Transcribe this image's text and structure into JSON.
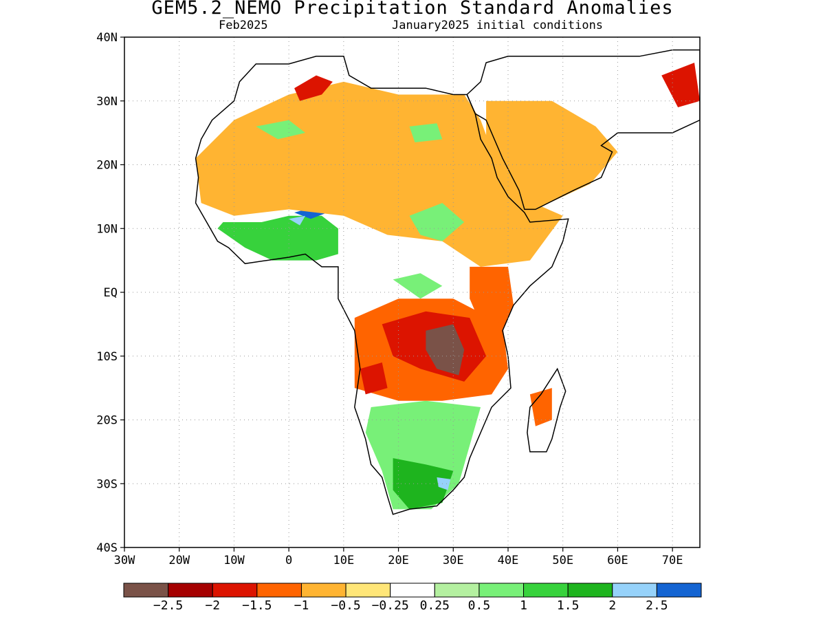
{
  "title": "GEM5.2_NEMO Precipitation Standard Anomalies",
  "subtitle_left": "Feb2025",
  "subtitle_right": "January2025 initial conditions",
  "map": {
    "lon_range": [
      -30,
      75
    ],
    "lat_range": [
      -40,
      40
    ],
    "lat_ticks": [
      {
        "value": 40,
        "label": "40N"
      },
      {
        "value": 30,
        "label": "30N"
      },
      {
        "value": 20,
        "label": "20N"
      },
      {
        "value": 10,
        "label": "10N"
      },
      {
        "value": 0,
        "label": "EQ"
      },
      {
        "value": -10,
        "label": "10S"
      },
      {
        "value": -20,
        "label": "20S"
      },
      {
        "value": -30,
        "label": "30S"
      },
      {
        "value": -40,
        "label": "40S"
      }
    ],
    "lon_ticks": [
      {
        "value": -30,
        "label": "30W"
      },
      {
        "value": -20,
        "label": "20W"
      },
      {
        "value": -10,
        "label": "10W"
      },
      {
        "value": 0,
        "label": "0"
      },
      {
        "value": 10,
        "label": "10E"
      },
      {
        "value": 20,
        "label": "20E"
      },
      {
        "value": 30,
        "label": "30E"
      },
      {
        "value": 40,
        "label": "40E"
      },
      {
        "value": 50,
        "label": "50E"
      },
      {
        "value": 60,
        "label": "60E"
      },
      {
        "value": 70,
        "label": "70E"
      }
    ],
    "grid": true
  },
  "colorbar": {
    "colors": [
      "#7a5248",
      "#a50000",
      "#dc1400",
      "#ff6400",
      "#ffb432",
      "#ffe678",
      "#ffffff",
      "#b4f0a0",
      "#78f078",
      "#37d23c",
      "#1eb41e",
      "#96d2fa",
      "#1464d2"
    ],
    "labels": [
      "−2.5",
      "−2",
      "−1.5",
      "−1",
      "−0.5",
      "−0.25",
      "0.25",
      "0.5",
      "1",
      "1.5",
      "2",
      "2.5"
    ]
  },
  "anomaly_regions": [
    {
      "name": "west-africa-wet",
      "color": "#37d23c",
      "lonlat": [
        [
          -13,
          10
        ],
        [
          -8,
          7
        ],
        [
          -3,
          5
        ],
        [
          5,
          5
        ],
        [
          9,
          6
        ],
        [
          9,
          10
        ],
        [
          6,
          12
        ],
        [
          0,
          12
        ],
        [
          -5,
          11
        ],
        [
          -12,
          11
        ]
      ]
    },
    {
      "name": "nigeria-very-wet",
      "color": "#1464d2",
      "lonlat": [
        [
          1,
          12.5
        ],
        [
          5,
          13.5
        ],
        [
          7,
          12.5
        ],
        [
          4,
          11.5
        ]
      ]
    },
    {
      "name": "nigeria-wet-blue",
      "color": "#96d2fa",
      "lonlat": [
        [
          0,
          11.5
        ],
        [
          3,
          12
        ],
        [
          2,
          10.5
        ]
      ]
    },
    {
      "name": "sahara-dry",
      "color": "#ffb432",
      "lonlat": [
        [
          -17,
          21
        ],
        [
          -10,
          27
        ],
        [
          0,
          31
        ],
        [
          10,
          33
        ],
        [
          20,
          31
        ],
        [
          32,
          31
        ],
        [
          35,
          27
        ],
        [
          38,
          20
        ],
        [
          42,
          15
        ],
        [
          50,
          12
        ],
        [
          44,
          5
        ],
        [
          35,
          4
        ],
        [
          28,
          8
        ],
        [
          18,
          9
        ],
        [
          10,
          12
        ],
        [
          0,
          13
        ],
        [
          -10,
          12
        ],
        [
          -16,
          14
        ]
      ]
    },
    {
      "name": "algeria-strong-dry",
      "color": "#dc1400",
      "lonlat": [
        [
          1,
          32
        ],
        [
          5,
          34
        ],
        [
          8,
          33
        ],
        [
          6,
          31
        ],
        [
          2,
          30
        ]
      ]
    },
    {
      "name": "central-sahara-wet",
      "color": "#78f078",
      "lonlat": [
        [
          -6,
          26
        ],
        [
          0,
          27
        ],
        [
          3,
          25
        ],
        [
          -2,
          24
        ]
      ]
    },
    {
      "name": "egypt-wet",
      "color": "#78f078",
      "lonlat": [
        [
          22,
          26
        ],
        [
          27,
          26.5
        ],
        [
          28,
          24
        ],
        [
          23,
          23.5
        ]
      ]
    },
    {
      "name": "sudan-wet",
      "color": "#78f078",
      "lonlat": [
        [
          22,
          12
        ],
        [
          28,
          14
        ],
        [
          32,
          11
        ],
        [
          28,
          8
        ],
        [
          24,
          9
        ]
      ]
    },
    {
      "name": "arabia-dry",
      "color": "#ffb432",
      "lonlat": [
        [
          36,
          30
        ],
        [
          48,
          30
        ],
        [
          56,
          26
        ],
        [
          60,
          22
        ],
        [
          55,
          17
        ],
        [
          45,
          13
        ],
        [
          40,
          16
        ],
        [
          36,
          24
        ]
      ]
    },
    {
      "name": "middle-east-strong-dry",
      "color": "#dc1400",
      "lonlat": [
        [
          68,
          34
        ],
        [
          74,
          36
        ],
        [
          75,
          30
        ],
        [
          71,
          29
        ]
      ]
    },
    {
      "name": "east-africa-dry",
      "color": "#ff6400",
      "lonlat": [
        [
          33,
          4
        ],
        [
          40,
          4
        ],
        [
          41,
          -2
        ],
        [
          39,
          -6
        ],
        [
          35,
          -5
        ],
        [
          33,
          -1
        ]
      ]
    },
    {
      "name": "central-africa-dry",
      "color": "#ff6400",
      "lonlat": [
        [
          12,
          -4
        ],
        [
          20,
          -1
        ],
        [
          30,
          -1
        ],
        [
          39,
          -5
        ],
        [
          40,
          -12
        ],
        [
          37,
          -16
        ],
        [
          28,
          -17
        ],
        [
          20,
          -17
        ],
        [
          12,
          -15
        ],
        [
          12,
          -9
        ]
      ]
    },
    {
      "name": "central-africa-strong-dry",
      "color": "#dc1400",
      "lonlat": [
        [
          17,
          -5
        ],
        [
          25,
          -3
        ],
        [
          33,
          -4
        ],
        [
          36,
          -10
        ],
        [
          32,
          -14
        ],
        [
          24,
          -12
        ],
        [
          19,
          -10
        ]
      ]
    },
    {
      "name": "angola-strong-dry",
      "color": "#dc1400",
      "lonlat": [
        [
          13,
          -12
        ],
        [
          17,
          -11
        ],
        [
          18,
          -15
        ],
        [
          14,
          -16
        ]
      ]
    },
    {
      "name": "zambia-extreme-dry",
      "color": "#7a5248",
      "lonlat": [
        [
          25,
          -6
        ],
        [
          30,
          -5
        ],
        [
          32,
          -9
        ],
        [
          31,
          -13
        ],
        [
          27,
          -12
        ],
        [
          25,
          -9
        ]
      ]
    },
    {
      "name": "southern-africa-wet",
      "color": "#78f078",
      "lonlat": [
        [
          15,
          -18
        ],
        [
          25,
          -17
        ],
        [
          35,
          -18
        ],
        [
          33,
          -24
        ],
        [
          31,
          -30
        ],
        [
          26,
          -34
        ],
        [
          19,
          -34
        ],
        [
          17,
          -28
        ],
        [
          14,
          -22
        ]
      ]
    },
    {
      "name": "south-africa-very-wet",
      "color": "#1eb41e",
      "lonlat": [
        [
          19,
          -26
        ],
        [
          25,
          -27
        ],
        [
          30,
          -28
        ],
        [
          28,
          -33
        ],
        [
          22,
          -34
        ],
        [
          19,
          -31
        ]
      ]
    },
    {
      "name": "lesotho-wet-blue",
      "color": "#96d2fa",
      "lonlat": [
        [
          27,
          -29
        ],
        [
          29.5,
          -29.3
        ],
        [
          29,
          -31
        ],
        [
          27.3,
          -30.5
        ]
      ]
    },
    {
      "name": "madagascar-dry",
      "color": "#ff6400",
      "lonlat": [
        [
          44,
          -16
        ],
        [
          48,
          -15
        ],
        [
          48,
          -20
        ],
        [
          45,
          -21
        ]
      ]
    },
    {
      "name": "congo-wet-patch",
      "color": "#78f078",
      "lonlat": [
        [
          19,
          2
        ],
        [
          24,
          3
        ],
        [
          28,
          1
        ],
        [
          24,
          -1
        ]
      ]
    }
  ],
  "africa_outline": [
    [
      -17,
      21
    ],
    [
      -16,
      24
    ],
    [
      -14,
      27
    ],
    [
      -10,
      30
    ],
    [
      -9,
      33
    ],
    [
      -6,
      35.8
    ],
    [
      0,
      35.8
    ],
    [
      5,
      37
    ],
    [
      10,
      37
    ],
    [
      11,
      34
    ],
    [
      15,
      32
    ],
    [
      20,
      32
    ],
    [
      25,
      32
    ],
    [
      30,
      31
    ],
    [
      32.5,
      31
    ],
    [
      34,
      28
    ],
    [
      35,
      24
    ],
    [
      37,
      21
    ],
    [
      38,
      18
    ],
    [
      40,
      15
    ],
    [
      43,
      12.5
    ],
    [
      44,
      11
    ],
    [
      51,
      11.5
    ],
    [
      50,
      8
    ],
    [
      48,
      4
    ],
    [
      44,
      1
    ],
    [
      41,
      -2
    ],
    [
      39,
      -6
    ],
    [
      40,
      -10
    ],
    [
      40.5,
      -15
    ],
    [
      37,
      -18
    ],
    [
      35,
      -22
    ],
    [
      33,
      -26
    ],
    [
      32,
      -29
    ],
    [
      30,
      -31
    ],
    [
      27,
      -33.5
    ],
    [
      22,
      -34
    ],
    [
      19,
      -34.8
    ],
    [
      18,
      -32
    ],
    [
      17,
      -29
    ],
    [
      15,
      -27
    ],
    [
      14,
      -23
    ],
    [
      12,
      -18
    ],
    [
      13,
      -12
    ],
    [
      12,
      -6
    ],
    [
      9,
      -1
    ],
    [
      9,
      4
    ],
    [
      6,
      4
    ],
    [
      3,
      6
    ],
    [
      0,
      5.5
    ],
    [
      -4,
      5
    ],
    [
      -8,
      4.5
    ],
    [
      -11,
      7
    ],
    [
      -13,
      8
    ],
    [
      -15,
      11
    ],
    [
      -17,
      14
    ],
    [
      -16.5,
      18
    ]
  ],
  "madagascar_outline": [
    [
      49,
      -12
    ],
    [
      50.5,
      -15.5
    ],
    [
      49.5,
      -18
    ],
    [
      48,
      -23
    ],
    [
      47,
      -25
    ],
    [
      44,
      -25
    ],
    [
      43.5,
      -22
    ],
    [
      44,
      -18
    ],
    [
      46,
      -16
    ]
  ],
  "arabia_outline": [
    [
      32.5,
      31
    ],
    [
      35,
      33
    ],
    [
      36,
      36
    ],
    [
      40,
      37
    ],
    [
      48,
      37
    ],
    [
      55,
      37
    ],
    [
      60,
      37
    ],
    [
      64,
      37
    ],
    [
      70,
      38
    ],
    [
      75,
      38
    ],
    [
      75,
      27
    ],
    [
      70,
      25
    ],
    [
      66,
      25
    ],
    [
      60,
      25
    ],
    [
      57,
      23
    ],
    [
      59,
      22
    ],
    [
      57,
      18
    ],
    [
      52,
      16
    ],
    [
      45,
      13
    ],
    [
      43,
      13
    ],
    [
      42,
      16
    ],
    [
      39,
      21
    ],
    [
      36,
      27
    ],
    [
      34,
      28
    ]
  ]
}
